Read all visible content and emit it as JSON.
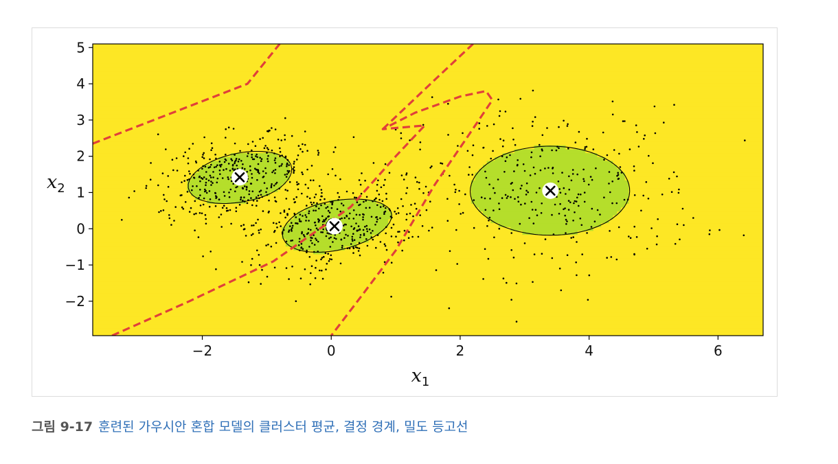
{
  "caption": {
    "label": "그림 9-17",
    "text": "훈련된 가우시안 혼합 모델의 클러스터 평균, 결정 경계, 밀도 등고선"
  },
  "chart_data": {
    "type": "contour",
    "xlabel": "x",
    "xlabel_sub": "1",
    "ylabel": "x",
    "ylabel_sub": "2",
    "xlim": [
      -3.7,
      6.7
    ],
    "ylim": [
      -2.95,
      5.1
    ],
    "xticks": [
      -2,
      0,
      2,
      4,
      6
    ],
    "xtick_labels": [
      "−2",
      "0",
      "2",
      "4",
      "6"
    ],
    "yticks": [
      -2,
      -1,
      0,
      1,
      2,
      3,
      4,
      5
    ],
    "ytick_labels": [
      "−2",
      "−1",
      "0",
      "1",
      "2",
      "3",
      "4",
      "5"
    ],
    "colormap": "viridis",
    "contour_line_color": "#000000",
    "decision_boundary_color": "#e0403a",
    "cluster_means": [
      {
        "x": -1.42,
        "y": 1.42
      },
      {
        "x": 0.05,
        "y": 0.07
      },
      {
        "x": 3.4,
        "y": 1.05
      }
    ],
    "gaussians": [
      {
        "mx": -1.42,
        "my": 1.42,
        "a": 0.75,
        "b": 0.52,
        "theta_deg": 36,
        "weight": 0.2
      },
      {
        "mx": 0.05,
        "my": 0.07,
        "a": 0.75,
        "b": 0.52,
        "theta_deg": 36,
        "weight": 0.2
      },
      {
        "mx": 3.4,
        "my": 1.05,
        "a": 1.15,
        "b": 1.15,
        "theta_deg": 0,
        "weight": 0.6
      }
    ],
    "contour_levels": [
      -3.2,
      -2.4,
      -1.6,
      -0.8,
      0.0,
      0.8,
      1.6,
      2.3
    ],
    "level_colors": [
      "#fde725",
      "#b5de2b",
      "#6ece58",
      "#35b779",
      "#1f9e89",
      "#26828e",
      "#31688e",
      "#3e4989",
      "#482878"
    ],
    "grid": false,
    "legend": "none",
    "colors": {
      "points": "#000000",
      "marker_fill": "#ffffff",
      "marker_cross": "#000000"
    }
  }
}
